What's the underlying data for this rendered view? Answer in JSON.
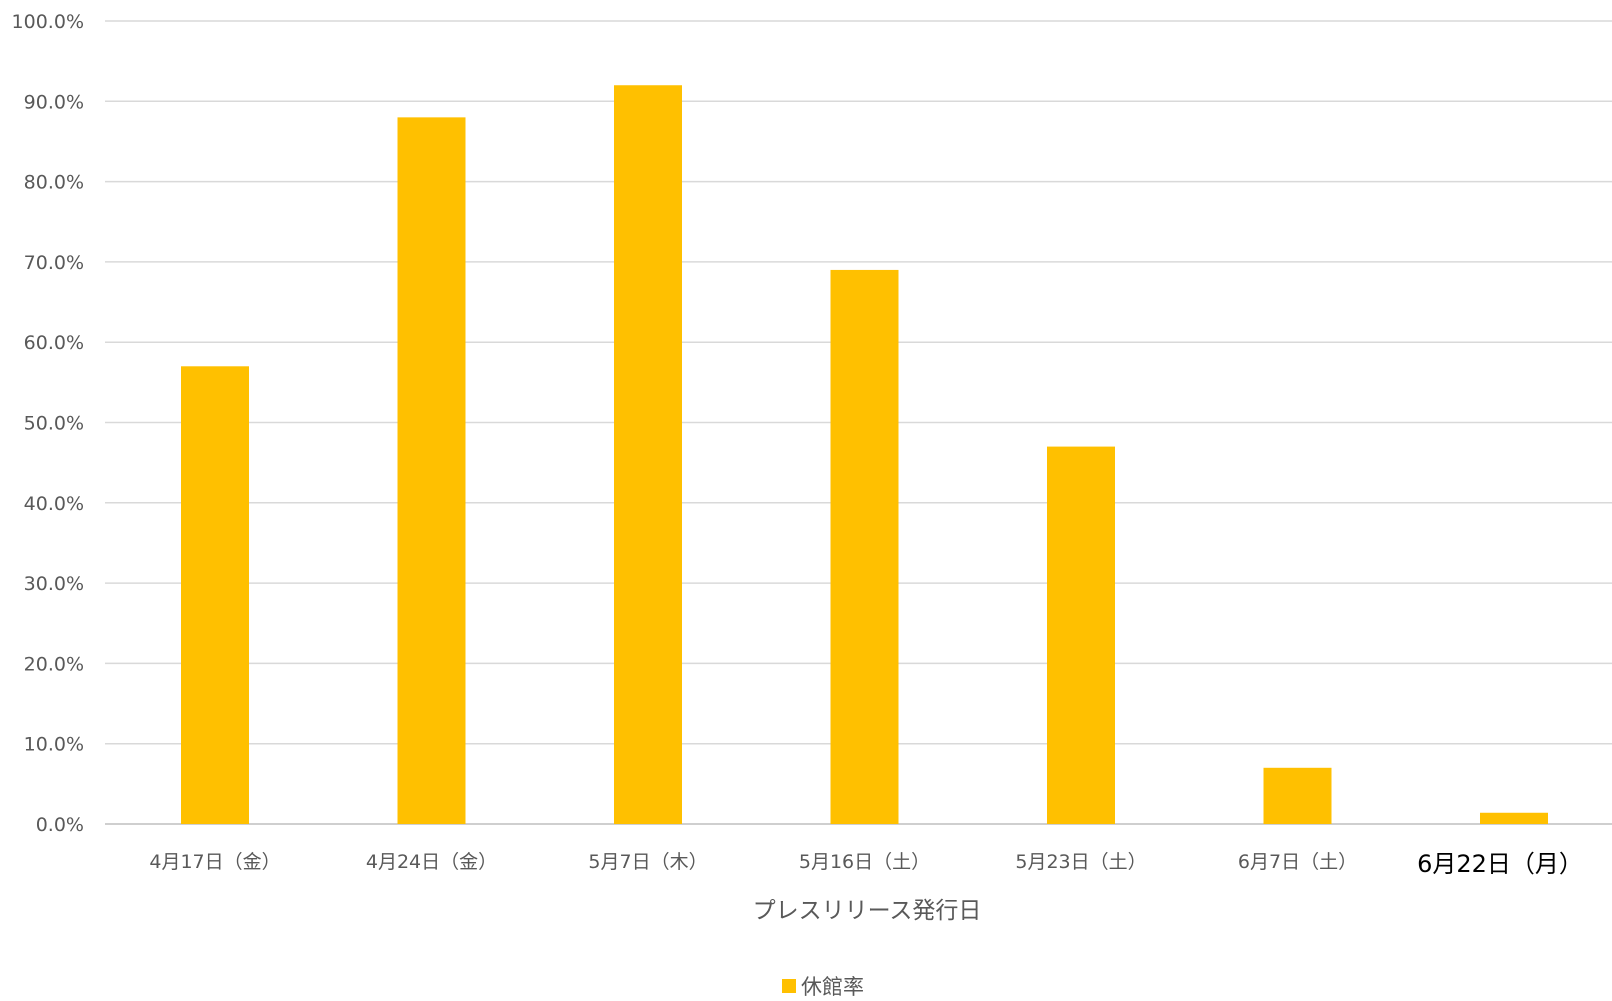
{
  "chart_data": {
    "type": "bar",
    "title": "",
    "xlabel": "プレスリリース発行日",
    "ylabel": "",
    "ylim": [
      0,
      1.0
    ],
    "ytick_step": 0.1,
    "ytick_format": "percent_1dp",
    "grid": true,
    "legend_position": "bottom",
    "categories": [
      "4月17日（金）",
      "4月24日（金）",
      "5月7日（木）",
      "5月16日（土）",
      "5月23日（土）",
      "6月7日（土）",
      "6月22日（月）"
    ],
    "emphasized_category_index": 6,
    "series": [
      {
        "name": "休館率",
        "color": "#FFC000",
        "values": [
          0.57,
          0.88,
          0.92,
          0.69,
          0.47,
          0.07,
          0.014
        ]
      }
    ]
  }
}
